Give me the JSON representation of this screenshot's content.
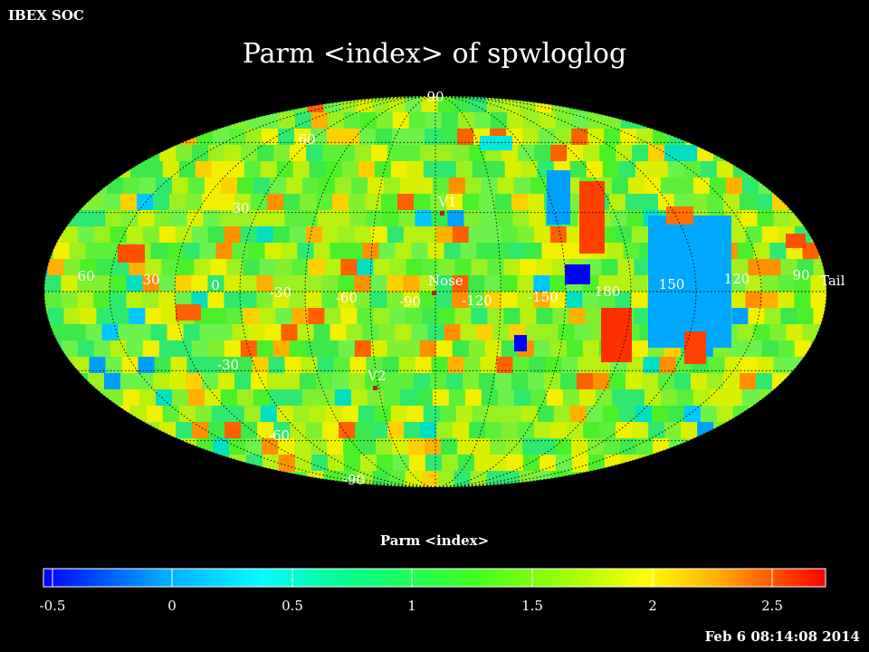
{
  "header": {
    "organization": "IBEX SOC",
    "title": "Parm  <index> of spwloglog"
  },
  "map": {
    "projection": "mollweide",
    "lon_labels": [
      "60",
      "30",
      "0",
      "-30",
      "-60",
      "-90",
      "-120",
      "-150",
      "180",
      "150",
      "120",
      "90"
    ],
    "lat_labels": [
      "90",
      "60",
      "30",
      "-30",
      "-60",
      "-90"
    ],
    "markers": [
      {
        "label": "V1",
        "color": "#b22222"
      },
      {
        "label": "Nose",
        "color": "#b22222"
      },
      {
        "label": "V2",
        "color": "#b22222"
      },
      {
        "label": "Tail",
        "color": "#b22222"
      }
    ],
    "grid": "dotted"
  },
  "colorbar": {
    "title": "Parm  <index>",
    "min": -0.5,
    "max": 2.75,
    "tick_labels": [
      "-0.5",
      "0",
      "0.5",
      "1",
      "1.5",
      "2",
      "2.5"
    ],
    "colormap": [
      "#0000ff",
      "#00ffff",
      "#00ff80",
      "#80ff00",
      "#ffff00",
      "#ff8000",
      "#ff0000"
    ]
  },
  "footer": {
    "timestamp": "Feb  6 08:14:08 2014"
  }
}
